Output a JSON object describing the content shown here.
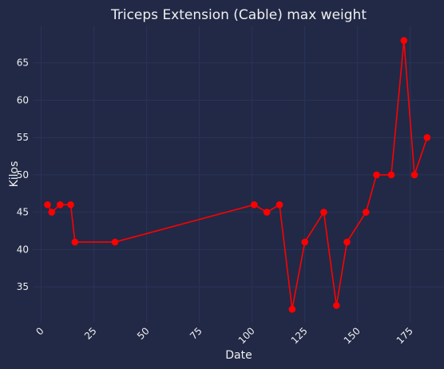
{
  "chart_data": {
    "type": "line",
    "title": "Triceps Extension (Cable) max weight",
    "xlabel": "Date",
    "ylabel": "Kilos",
    "xlim": [
      -4,
      191
    ],
    "ylim": [
      30.2,
      70.0
    ],
    "x_ticks": [
      0,
      25,
      50,
      75,
      100,
      125,
      150,
      175
    ],
    "x_tick_labels": [
      "0",
      "25",
      "50",
      "75",
      "100",
      "125",
      "150",
      "175"
    ],
    "y_ticks": [
      35,
      40,
      45,
      50,
      55,
      60,
      65
    ],
    "y_tick_labels": [
      "35",
      "40",
      "45",
      "50",
      "55",
      "60",
      "65"
    ],
    "grid": true,
    "legend": "none",
    "series": [
      {
        "color": "#ff0000",
        "marker": "circle",
        "points": [
          {
            "x": 3,
            "y": 46
          },
          {
            "x": 5,
            "y": 45
          },
          {
            "x": 9,
            "y": 46
          },
          {
            "x": 14,
            "y": 46
          },
          {
            "x": 16,
            "y": 41
          },
          {
            "x": 35,
            "y": 41
          },
          {
            "x": 101,
            "y": 46
          },
          {
            "x": 107,
            "y": 45
          },
          {
            "x": 113,
            "y": 46
          },
          {
            "x": 119,
            "y": 32
          },
          {
            "x": 125,
            "y": 41
          },
          {
            "x": 134,
            "y": 45
          },
          {
            "x": 140,
            "y": 32.5
          },
          {
            "x": 145,
            "y": 41
          },
          {
            "x": 154,
            "y": 45
          },
          {
            "x": 159,
            "y": 50
          },
          {
            "x": 166,
            "y": 50
          },
          {
            "x": 172,
            "y": 68
          },
          {
            "x": 177,
            "y": 50
          },
          {
            "x": 183,
            "y": 55
          }
        ]
      }
    ]
  }
}
